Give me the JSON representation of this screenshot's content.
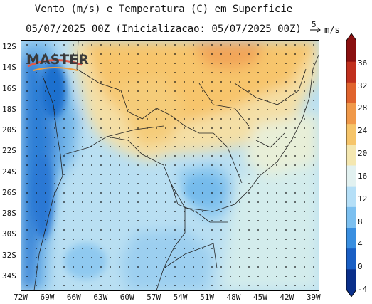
{
  "title": {
    "line1": "Vento (m/s) e Temperatura (C) em Superficie",
    "line2": "05/07/2025 00Z (Inicializacao: 05/07/2025 00Z)"
  },
  "legend": {
    "vector_scale": "5",
    "unit": "m/s"
  },
  "logo": {
    "text": "MASTER"
  },
  "map": {
    "lon_range": [
      -72,
      -38.5
    ],
    "lat_range": [
      -35.3,
      -11.3
    ],
    "y_ticks": [
      "12S",
      "14S",
      "16S",
      "18S",
      "20S",
      "22S",
      "24S",
      "26S",
      "28S",
      "30S",
      "32S",
      "34S"
    ],
    "y_values": [
      -12,
      -14,
      -16,
      -18,
      -20,
      -22,
      -24,
      -26,
      -28,
      -30,
      -32,
      -34
    ],
    "x_ticks": [
      "72W",
      "69W",
      "66W",
      "63W",
      "60W",
      "57W",
      "54W",
      "51W",
      "48W",
      "45W",
      "42W",
      "39W"
    ],
    "x_values": [
      -72,
      -69,
      -66,
      -63,
      -60,
      -57,
      -54,
      -51,
      -48,
      -45,
      -42,
      -39
    ]
  },
  "colorbar": {
    "ticks": [
      "36",
      "32",
      "28",
      "24",
      "20",
      "16",
      "12",
      "8",
      "4",
      "0",
      "-4"
    ],
    "values": [
      36,
      32,
      28,
      24,
      20,
      16,
      12,
      8,
      4,
      0,
      -4
    ],
    "range": [
      -4,
      40
    ],
    "colors": [
      "#0a2f8a",
      "#1a5fc4",
      "#3a8fe0",
      "#7cc0f0",
      "#b5dff7",
      "#e2f1f0",
      "#f4e7b0",
      "#f6c56a",
      "#f0994a",
      "#e0642e",
      "#c0301e",
      "#8a1010"
    ]
  }
}
